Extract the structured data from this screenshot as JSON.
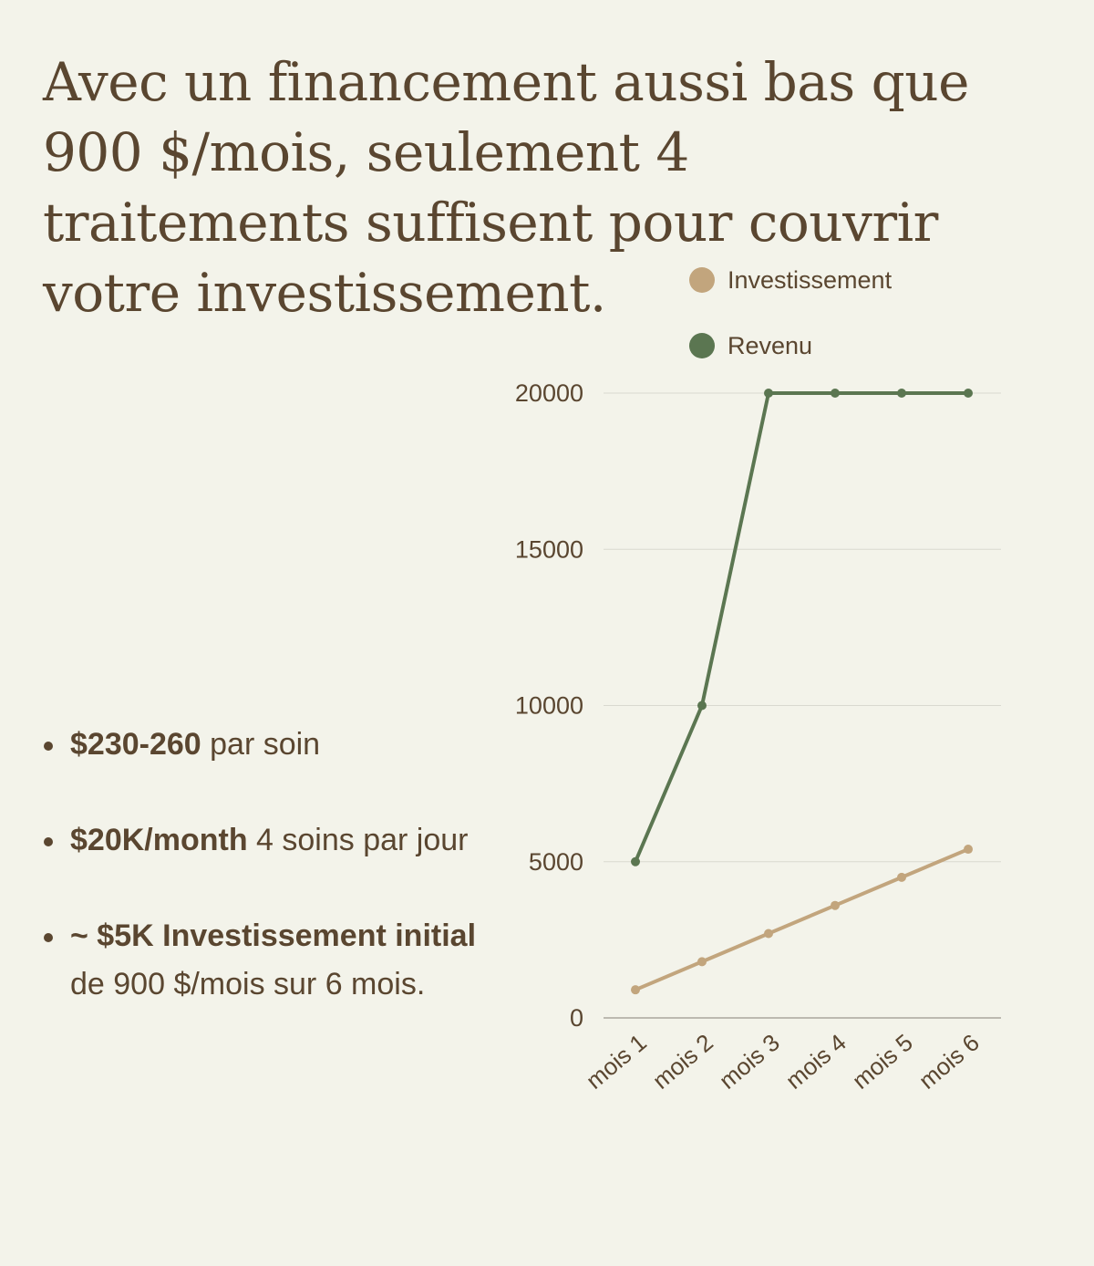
{
  "headline": "Avec un financement aussi bas que 900 $/mois, seulement 4 traitements suffisent pour couvrir votre investissement.",
  "bullets": [
    {
      "bold": "$230-260",
      "text": " par soin"
    },
    {
      "bold": "$20K/month",
      "text": " 4  soins par jour"
    },
    {
      "bold": "~ $5K Investissement initial",
      "text": " de 900 $/mois sur 6 mois."
    }
  ],
  "colors": {
    "background": "#f3f3ea",
    "text": "#5a4630",
    "investissement": "#c2a57d",
    "revenu": "#5b7651",
    "grid": "#d9d9d0"
  },
  "chart_data": {
    "type": "line",
    "categories": [
      "mois 1",
      "mois 2",
      "mois 3",
      "mois 4",
      "mois 5",
      "mois 6"
    ],
    "series": [
      {
        "name": "Investissement",
        "color": "#c2a57d",
        "values": [
          900,
          1800,
          2700,
          3600,
          4500,
          5400
        ]
      },
      {
        "name": "Revenu",
        "color": "#5b7651",
        "values": [
          5000,
          10000,
          20000,
          20000,
          20000,
          20000
        ]
      }
    ],
    "yticks": [
      0,
      5000,
      10000,
      15000,
      20000
    ],
    "ylim": [
      0,
      20000
    ],
    "grid": true,
    "legend": "top"
  }
}
